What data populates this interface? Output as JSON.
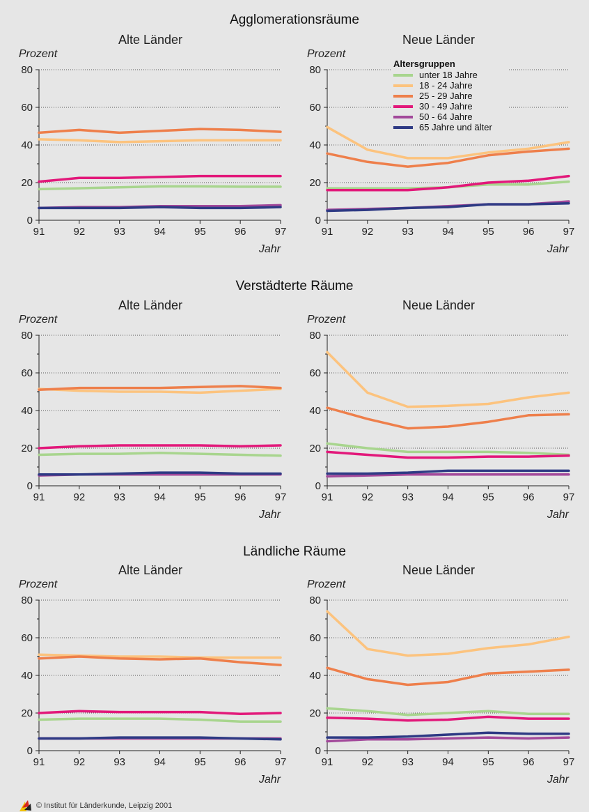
{
  "years": [
    "91",
    "92",
    "93",
    "94",
    "95",
    "96",
    "97"
  ],
  "y_ticks": [
    "0",
    "20",
    "40",
    "60",
    "80"
  ],
  "y_axis_label": "Prozent",
  "x_axis_label": "Jahr",
  "legend": {
    "title": "Altersgruppen",
    "items": [
      {
        "label": "unter 18 Jahre",
        "color": "#a8d58e"
      },
      {
        "label": "18 - 24 Jahre",
        "color": "#fcc37e"
      },
      {
        "label": "25 - 29 Jahre",
        "color": "#ee7f4b"
      },
      {
        "label": "30 - 49 Jahre",
        "color": "#e2187a"
      },
      {
        "label": "50 - 64 Jahre",
        "color": "#a2489a"
      },
      {
        "label": "65 Jahre und älter",
        "color": "#2e3a84"
      }
    ]
  },
  "footer": "© Institut für Länderkunde, Leipzig 2001",
  "chart_data": [
    {
      "type": "line",
      "section": "Agglomerationsräume",
      "title": "Alte Länder",
      "x": [
        "91",
        "92",
        "93",
        "94",
        "95",
        "96",
        "97"
      ],
      "ylim": [
        0,
        80
      ],
      "ylabel": "Prozent",
      "xlabel": "Jahr",
      "series": [
        {
          "name": "unter 18 Jahre",
          "values": [
            16.5,
            17,
            17.5,
            18,
            18,
            17.8,
            17.8
          ]
        },
        {
          "name": "18 - 24 Jahre",
          "values": [
            43,
            42.5,
            41.5,
            42,
            42.5,
            42.5,
            42.5
          ]
        },
        {
          "name": "25 - 29 Jahre",
          "values": [
            46.5,
            48,
            46.5,
            47.5,
            48.5,
            48,
            47
          ]
        },
        {
          "name": "30 - 49 Jahre",
          "values": [
            20.5,
            22.5,
            22.5,
            23,
            23.5,
            23.5,
            23.5
          ]
        },
        {
          "name": "50 - 64 Jahre",
          "values": [
            6.5,
            7,
            7,
            7.5,
            7.5,
            7.5,
            8
          ]
        },
        {
          "name": "65 Jahre und älter",
          "values": [
            6.5,
            6.5,
            6.5,
            7,
            6.5,
            6.5,
            7
          ]
        }
      ]
    },
    {
      "type": "line",
      "section": "",
      "title": "Neue Länder",
      "x": [
        "91",
        "92",
        "93",
        "94",
        "95",
        "96",
        "97"
      ],
      "ylim": [
        0,
        80
      ],
      "ylabel": "Prozent",
      "xlabel": "Jahr",
      "series": [
        {
          "name": "unter 18 Jahre",
          "values": [
            17,
            17,
            17,
            17.5,
            19,
            19,
            20.5
          ]
        },
        {
          "name": "18 - 24 Jahre",
          "values": [
            49.5,
            37.5,
            33,
            33,
            36,
            38,
            41.5
          ]
        },
        {
          "name": "25 - 29 Jahre",
          "values": [
            35.5,
            31,
            28.5,
            30.5,
            34.5,
            36.5,
            38
          ]
        },
        {
          "name": "30 - 49 Jahre",
          "values": [
            16,
            16,
            16,
            17.5,
            20,
            21,
            23.5
          ]
        },
        {
          "name": "50 - 64 Jahre",
          "values": [
            5.5,
            6,
            6.5,
            7.5,
            8.5,
            8.5,
            10
          ]
        },
        {
          "name": "65 Jahre und älter",
          "values": [
            5,
            5.5,
            6.5,
            7,
            8.5,
            8.5,
            9
          ]
        }
      ]
    },
    {
      "type": "line",
      "section": "Verstädterte Räume",
      "title": "Alte Länder",
      "x": [
        "91",
        "92",
        "93",
        "94",
        "95",
        "96",
        "97"
      ],
      "ylim": [
        0,
        80
      ],
      "ylabel": "Prozent",
      "xlabel": "Jahr",
      "series": [
        {
          "name": "unter 18 Jahre",
          "values": [
            16.5,
            17,
            17,
            17.5,
            17,
            16.5,
            16
          ]
        },
        {
          "name": "18 - 24 Jahre",
          "values": [
            51.5,
            50.5,
            50,
            50,
            49.5,
            50.5,
            51.5
          ]
        },
        {
          "name": "25 - 29 Jahre",
          "values": [
            51,
            52,
            52,
            52,
            52.5,
            53,
            52
          ]
        },
        {
          "name": "30 - 49 Jahre",
          "values": [
            20,
            21,
            21.5,
            21.5,
            21.5,
            21,
            21.5
          ]
        },
        {
          "name": "50 - 64 Jahre",
          "values": [
            5.5,
            6,
            6,
            6,
            6,
            6,
            6
          ]
        },
        {
          "name": "65 Jahre und älter",
          "values": [
            6,
            6,
            6.5,
            7,
            7,
            6.5,
            6.5
          ]
        }
      ]
    },
    {
      "type": "line",
      "section": "",
      "title": "Neue Länder",
      "x": [
        "91",
        "92",
        "93",
        "94",
        "95",
        "96",
        "97"
      ],
      "ylim": [
        0,
        80
      ],
      "ylabel": "Prozent",
      "xlabel": "Jahr",
      "series": [
        {
          "name": "unter 18 Jahre",
          "values": [
            22.5,
            20,
            18,
            18,
            18,
            17.5,
            16.5
          ]
        },
        {
          "name": "18 - 24 Jahre",
          "values": [
            71,
            49.5,
            42,
            42.5,
            43.5,
            47,
            49.5
          ]
        },
        {
          "name": "25 - 29 Jahre",
          "values": [
            41.5,
            35.5,
            30.5,
            31.5,
            34,
            37.5,
            38
          ]
        },
        {
          "name": "30 - 49 Jahre",
          "values": [
            18,
            16.5,
            15,
            15,
            15.5,
            15.5,
            16
          ]
        },
        {
          "name": "50 - 64 Jahre",
          "values": [
            5,
            5.5,
            6,
            6,
            6,
            6,
            6
          ]
        },
        {
          "name": "65 Jahre und älter",
          "values": [
            6.5,
            6.5,
            7,
            8,
            8,
            8,
            8
          ]
        }
      ]
    },
    {
      "type": "line",
      "section": "Ländliche Räume",
      "title": "Alte Länder",
      "x": [
        "91",
        "92",
        "93",
        "94",
        "95",
        "96",
        "97"
      ],
      "ylim": [
        0,
        80
      ],
      "ylabel": "Prozent",
      "xlabel": "Jahr",
      "series": [
        {
          "name": "unter 18 Jahre",
          "values": [
            16.5,
            17,
            17,
            17,
            16.5,
            15.5,
            15.5
          ]
        },
        {
          "name": "18 - 24 Jahre",
          "values": [
            51,
            50.5,
            50,
            50,
            49.5,
            49.5,
            49.5
          ]
        },
        {
          "name": "25 - 29 Jahre",
          "values": [
            49,
            50,
            49,
            48.5,
            49,
            47,
            45.5
          ]
        },
        {
          "name": "30 - 49 Jahre",
          "values": [
            20,
            21,
            20.5,
            20.5,
            20.5,
            19.5,
            20
          ]
        },
        {
          "name": "50 - 64 Jahre",
          "values": [
            6.5,
            6.5,
            6.5,
            6.5,
            6.5,
            6.5,
            6.5
          ]
        },
        {
          "name": "65 Jahre und älter",
          "values": [
            6.5,
            6.5,
            7,
            7,
            7,
            6.5,
            6
          ]
        }
      ]
    },
    {
      "type": "line",
      "section": "",
      "title": "Neue Länder",
      "x": [
        "91",
        "92",
        "93",
        "94",
        "95",
        "96",
        "97"
      ],
      "ylim": [
        0,
        80
      ],
      "ylabel": "Prozent",
      "xlabel": "Jahr",
      "series": [
        {
          "name": "unter 18 Jahre",
          "values": [
            22.5,
            21,
            19,
            20,
            21,
            19.5,
            19.5
          ]
        },
        {
          "name": "18 - 24 Jahre",
          "values": [
            74,
            54,
            50.5,
            51.5,
            54.5,
            56.5,
            60.5
          ]
        },
        {
          "name": "25 - 29 Jahre",
          "values": [
            44,
            38,
            35,
            36.5,
            41,
            42,
            43
          ]
        },
        {
          "name": "30 - 49 Jahre",
          "values": [
            17.5,
            17,
            16,
            16.5,
            18,
            17,
            17
          ]
        },
        {
          "name": "50 - 64 Jahre",
          "values": [
            5,
            6,
            6,
            6.5,
            7,
            6.5,
            7
          ]
        },
        {
          "name": "65 Jahre und älter",
          "values": [
            7,
            7,
            7.5,
            8.5,
            9.5,
            9,
            9
          ]
        }
      ]
    }
  ]
}
